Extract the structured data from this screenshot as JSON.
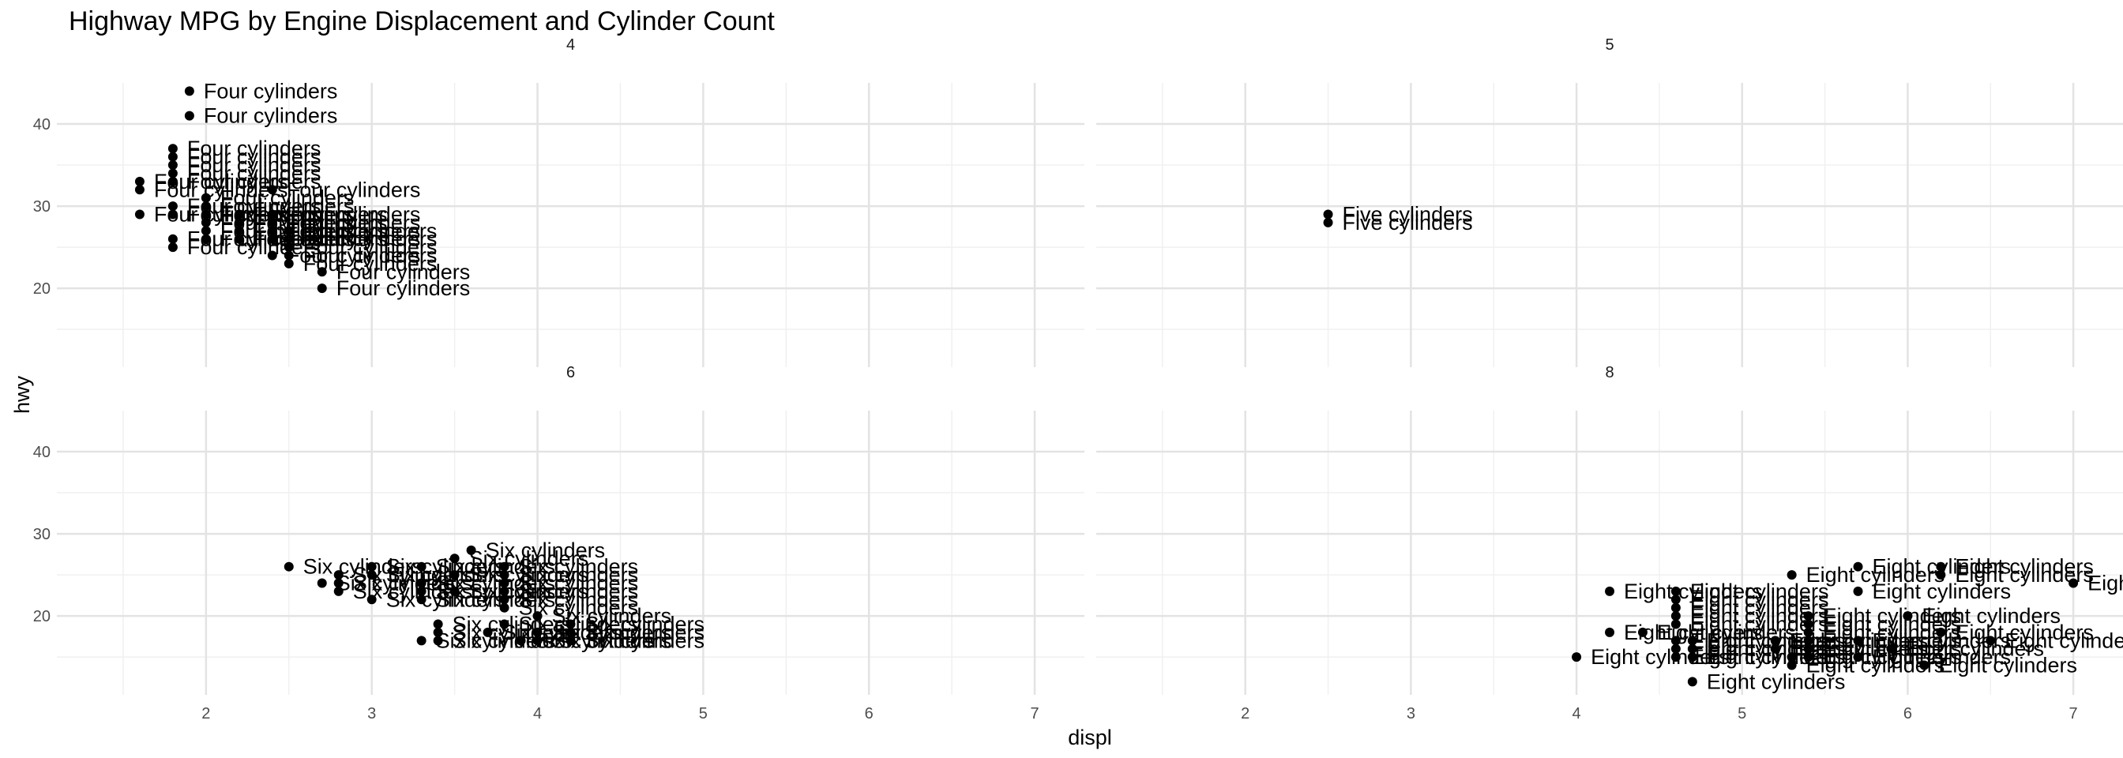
{
  "chart_data": {
    "type": "scatter",
    "title": "Highway MPG by Engine Displacement and Cylinder Count",
    "xlabel": "displ",
    "ylabel": "hwy",
    "xlim": [
      1.1,
      7.3
    ],
    "ylim": [
      10.4,
      45.0
    ],
    "x_ticks": [
      2,
      3,
      4,
      5,
      6,
      7
    ],
    "y_ticks": [
      20,
      30,
      40
    ],
    "grid": true,
    "legend": "none",
    "panels": [
      {
        "facet": "4",
        "label": "Four cylinders",
        "points": [
          [
            1.9,
            44
          ],
          [
            1.9,
            41
          ],
          [
            1.8,
            37
          ],
          [
            1.8,
            36
          ],
          [
            1.8,
            35
          ],
          [
            1.8,
            34
          ],
          [
            1.6,
            33
          ],
          [
            1.6,
            32
          ],
          [
            1.8,
            33
          ],
          [
            2.0,
            31
          ],
          [
            2.4,
            32
          ],
          [
            2.0,
            30
          ],
          [
            1.8,
            30
          ],
          [
            1.6,
            29
          ],
          [
            1.8,
            29
          ],
          [
            2.0,
            29
          ],
          [
            2.2,
            29
          ],
          [
            2.4,
            29
          ],
          [
            2.0,
            28
          ],
          [
            2.2,
            28
          ],
          [
            2.4,
            28
          ],
          [
            2.0,
            27
          ],
          [
            2.2,
            27
          ],
          [
            2.4,
            27
          ],
          [
            2.5,
            27
          ],
          [
            2.0,
            26
          ],
          [
            2.2,
            26
          ],
          [
            2.4,
            26
          ],
          [
            2.5,
            26
          ],
          [
            1.8,
            26
          ],
          [
            1.8,
            25
          ],
          [
            2.5,
            25
          ],
          [
            2.4,
            24
          ],
          [
            2.5,
            24
          ],
          [
            2.5,
            23
          ],
          [
            2.7,
            22
          ],
          [
            2.7,
            20
          ]
        ]
      },
      {
        "facet": "5",
        "label": "Five cylinders",
        "points": [
          [
            2.5,
            29
          ],
          [
            2.5,
            28
          ]
        ]
      },
      {
        "facet": "6",
        "label": "Six cylinders",
        "points": [
          [
            3.6,
            28
          ],
          [
            3.5,
            27
          ],
          [
            2.5,
            26
          ],
          [
            3.0,
            26
          ],
          [
            3.3,
            26
          ],
          [
            3.8,
            26
          ],
          [
            2.8,
            25
          ],
          [
            3.0,
            25
          ],
          [
            3.5,
            25
          ],
          [
            3.8,
            25
          ],
          [
            2.8,
            24
          ],
          [
            2.7,
            24
          ],
          [
            3.3,
            24
          ],
          [
            3.8,
            24
          ],
          [
            2.8,
            23
          ],
          [
            3.3,
            23
          ],
          [
            3.5,
            23
          ],
          [
            3.8,
            23
          ],
          [
            3.0,
            22
          ],
          [
            3.3,
            22
          ],
          [
            3.8,
            22
          ],
          [
            3.8,
            21
          ],
          [
            4.0,
            20
          ],
          [
            3.4,
            19
          ],
          [
            3.8,
            19
          ],
          [
            4.2,
            19
          ],
          [
            3.4,
            18
          ],
          [
            4.0,
            18
          ],
          [
            4.2,
            18
          ],
          [
            3.7,
            18
          ],
          [
            3.3,
            17
          ],
          [
            3.4,
            17
          ],
          [
            3.9,
            17
          ],
          [
            4.0,
            17
          ],
          [
            4.2,
            17
          ]
        ]
      },
      {
        "facet": "8",
        "label": "Eight cylinders",
        "points": [
          [
            5.7,
            26
          ],
          [
            6.2,
            26
          ],
          [
            6.2,
            25
          ],
          [
            5.3,
            25
          ],
          [
            7.0,
            24
          ],
          [
            5.7,
            23
          ],
          [
            4.2,
            23
          ],
          [
            4.6,
            23
          ],
          [
            4.6,
            22
          ],
          [
            4.6,
            21
          ],
          [
            4.6,
            20
          ],
          [
            5.4,
            20
          ],
          [
            6.0,
            20
          ],
          [
            4.6,
            19
          ],
          [
            5.4,
            19
          ],
          [
            4.4,
            18
          ],
          [
            4.2,
            18
          ],
          [
            5.4,
            18
          ],
          [
            6.2,
            18
          ],
          [
            4.6,
            17
          ],
          [
            4.7,
            17
          ],
          [
            5.2,
            17
          ],
          [
            5.4,
            17
          ],
          [
            5.7,
            17
          ],
          [
            6.5,
            17
          ],
          [
            4.6,
            16
          ],
          [
            4.7,
            16
          ],
          [
            5.4,
            16
          ],
          [
            5.2,
            16
          ],
          [
            5.9,
            16
          ],
          [
            4.0,
            15
          ],
          [
            4.6,
            15
          ],
          [
            4.7,
            15
          ],
          [
            5.3,
            15
          ],
          [
            5.4,
            15
          ],
          [
            5.7,
            15
          ],
          [
            6.1,
            14
          ],
          [
            5.3,
            14
          ],
          [
            4.7,
            12
          ]
        ]
      }
    ]
  }
}
